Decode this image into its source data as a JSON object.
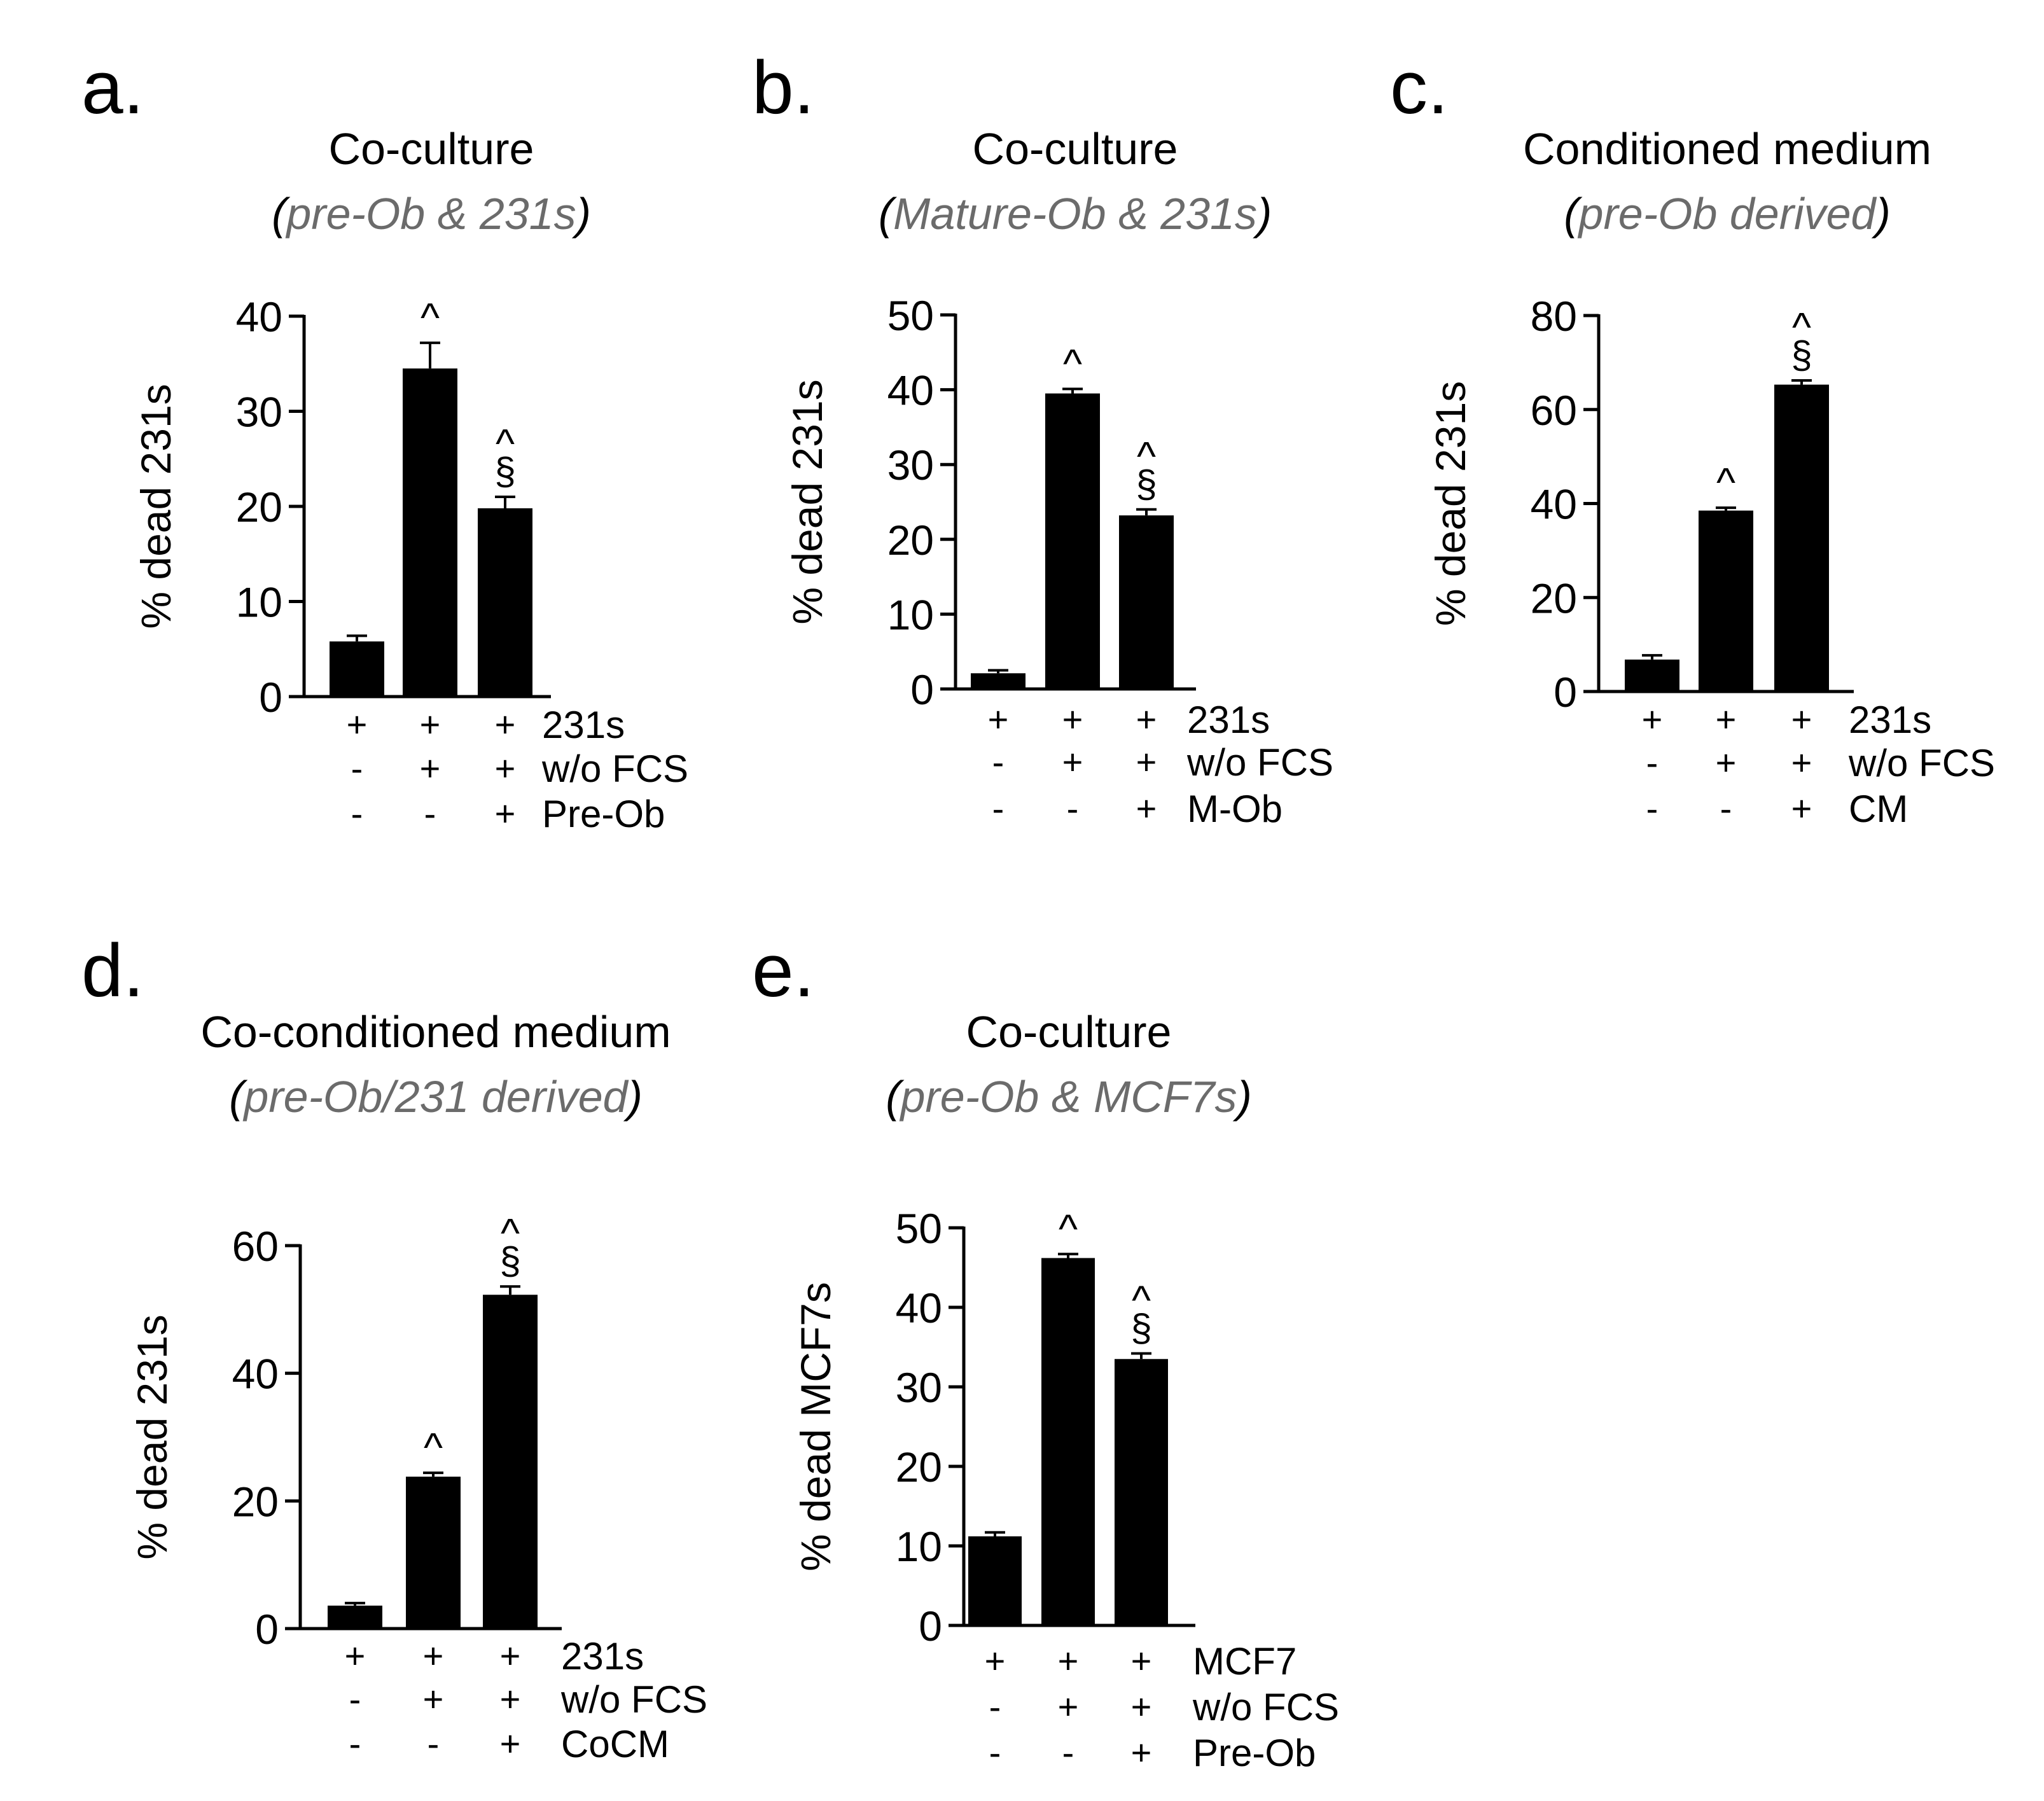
{
  "chart_data": [
    {
      "id": "a",
      "type": "bar",
      "letter": "a.",
      "title": "Co-culture",
      "subtitle": "pre-Ob & 231s",
      "ylabel": "% dead 231s",
      "ylim": [
        0,
        40
      ],
      "yticks": [
        0,
        10,
        20,
        30,
        40
      ],
      "values": [
        5.8,
        34.5,
        19.8
      ],
      "errors": [
        0.6,
        2.7,
        1.2
      ],
      "marks": [
        "",
        "^",
        "^§"
      ],
      "rows": [
        {
          "label": "231s",
          "signs": [
            "+",
            "+",
            "+"
          ]
        },
        {
          "label": "w/o FCS",
          "signs": [
            "-",
            "+",
            "+"
          ]
        },
        {
          "label": "Pre-Ob",
          "signs": [
            "-",
            "-",
            "+"
          ]
        }
      ]
    },
    {
      "id": "b",
      "type": "bar",
      "letter": "b.",
      "title": "Co-culture",
      "subtitle": "Mature-Ob & 231s",
      "ylabel": "% dead 231s",
      "ylim": [
        0,
        50
      ],
      "yticks": [
        0,
        10,
        20,
        30,
        40,
        50
      ],
      "values": [
        2.1,
        39.5,
        23.2
      ],
      "errors": [
        0.4,
        0.6,
        0.8
      ],
      "marks": [
        "",
        "^",
        "^§"
      ],
      "rows": [
        {
          "label": "231s",
          "signs": [
            "+",
            "+",
            "+"
          ]
        },
        {
          "label": "w/o FCS",
          "signs": [
            "-",
            "+",
            "+"
          ]
        },
        {
          "label": "M-Ob",
          "signs": [
            "-",
            "-",
            "+"
          ]
        }
      ]
    },
    {
      "id": "c",
      "type": "bar",
      "letter": "c.",
      "title": "Conditioned medium",
      "subtitle": "pre-Ob derived",
      "ylabel": "% dead 231s",
      "ylim": [
        0,
        80
      ],
      "yticks": [
        0,
        20,
        40,
        60,
        80
      ],
      "values": [
        6.8,
        38.5,
        65.3
      ],
      "errors": [
        0.9,
        0.6,
        0.9
      ],
      "marks": [
        "",
        "^",
        "^§"
      ],
      "rows": [
        {
          "label": "231s",
          "signs": [
            "+",
            "+",
            "+"
          ]
        },
        {
          "label": "w/o FCS",
          "signs": [
            "-",
            "+",
            "+"
          ]
        },
        {
          "label": "CM",
          "signs": [
            "-",
            "-",
            "+"
          ]
        }
      ]
    },
    {
      "id": "d",
      "type": "bar",
      "letter": "d.",
      "title": "Co-conditioned medium",
      "subtitle": "pre-Ob/231 derived",
      "ylabel": "% dead 231s",
      "ylim": [
        0,
        60
      ],
      "yticks": [
        0,
        20,
        40,
        60
      ],
      "values": [
        3.6,
        23.8,
        52.3
      ],
      "errors": [
        0.4,
        0.6,
        1.3
      ],
      "marks": [
        "",
        "^",
        "^§"
      ],
      "rows": [
        {
          "label": "231s",
          "signs": [
            "+",
            "+",
            "+"
          ]
        },
        {
          "label": "w/o FCS",
          "signs": [
            "-",
            "+",
            "+"
          ]
        },
        {
          "label": "CoCM",
          "signs": [
            "-",
            "-",
            "+"
          ]
        }
      ]
    },
    {
      "id": "e",
      "type": "bar",
      "letter": "e.",
      "title": "Co-culture",
      "subtitle": "pre-Ob & MCF7s",
      "ylabel": "% dead MCF7s",
      "ylim": [
        0,
        50
      ],
      "yticks": [
        0,
        10,
        20,
        30,
        40,
        50
      ],
      "values": [
        11.2,
        46.2,
        33.5
      ],
      "errors": [
        0.5,
        0.5,
        0.7
      ],
      "marks": [
        "",
        "^",
        "^§"
      ],
      "rows": [
        {
          "label": "MCF7",
          "signs": [
            "+",
            "+",
            "+"
          ]
        },
        {
          "label": "w/o FCS",
          "signs": [
            "-",
            "+",
            "+"
          ]
        },
        {
          "label": "Pre-Ob",
          "signs": [
            "-",
            "-",
            "+"
          ]
        }
      ]
    }
  ]
}
